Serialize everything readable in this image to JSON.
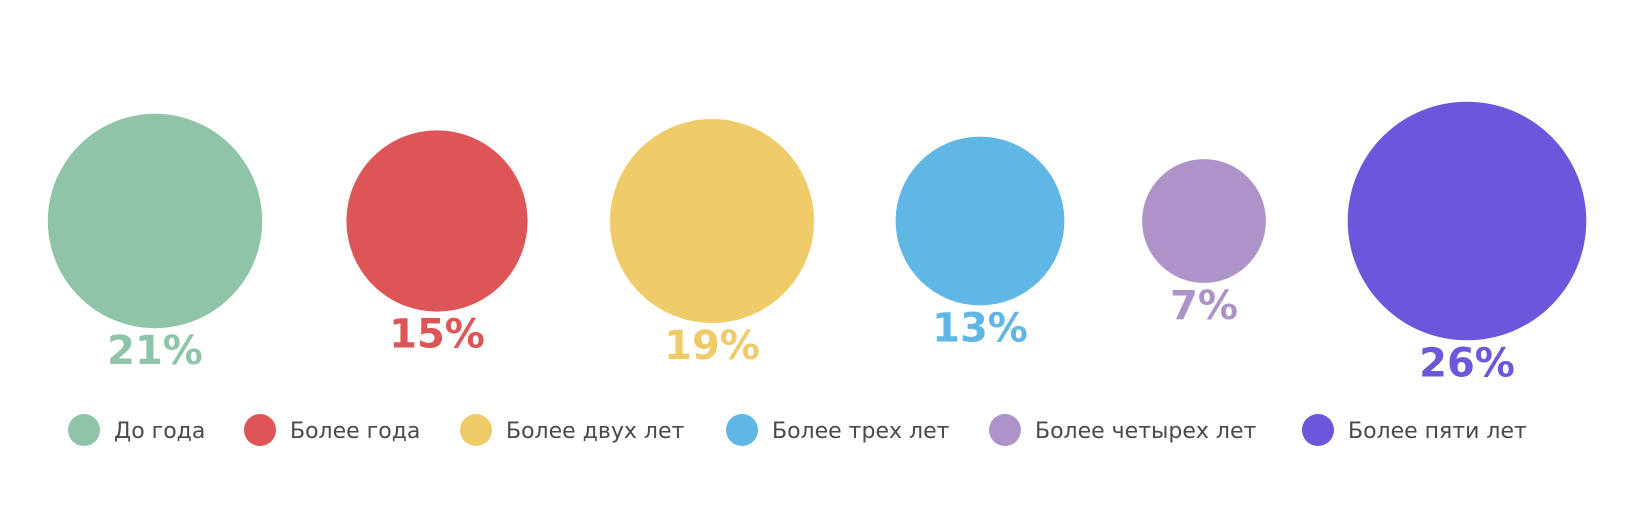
{
  "chart_data": {
    "type": "bubble",
    "title": "",
    "categories": [
      "До года",
      "Более года",
      "Более двух лет",
      "Более трех лет",
      "Более четырех лет",
      "Более пяти лет"
    ],
    "values": [
      21,
      15,
      19,
      13,
      7,
      26
    ],
    "value_labels": [
      "21%",
      "15%",
      "19%",
      "13%",
      "7%",
      "26%"
    ],
    "unit": "%",
    "colors": [
      "#8fc4a8",
      "#de5558",
      "#efcb6a",
      "#60b6e5",
      "#ad93c8",
      "#6e56dc"
    ],
    "legend": {
      "placement": "bottom",
      "items": [
        "До года",
        "Более года",
        "Более двух лет",
        "Более трех лет",
        "Более четырех лет",
        "Более пяти лет"
      ]
    }
  }
}
